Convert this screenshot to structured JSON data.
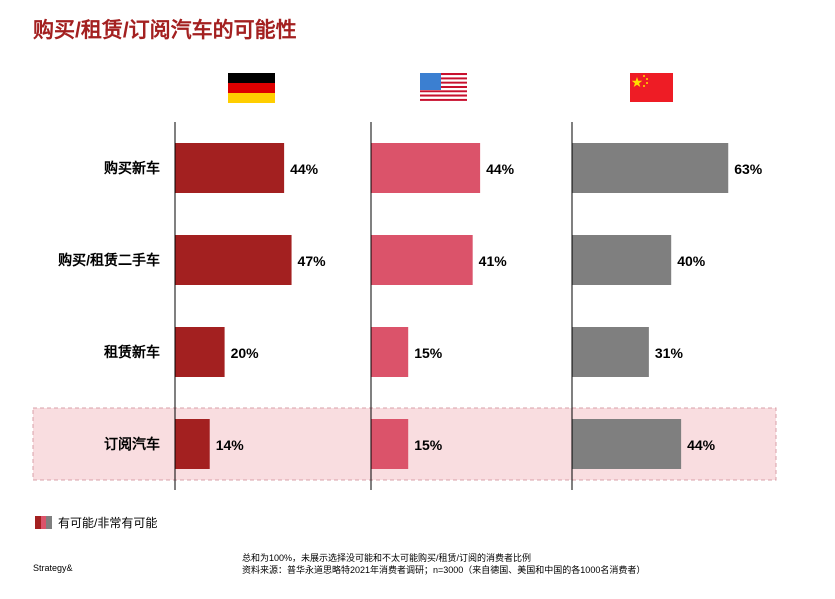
{
  "title": "购买/租赁/订阅汽车的可能性",
  "chart_data": {
    "type": "bar",
    "orientation": "horizontal",
    "title": "购买/租赁/订阅汽车的可能性",
    "categories": [
      "购买新车",
      "购买/租赁二手车",
      "租赁新车",
      "订阅汽车"
    ],
    "series": [
      {
        "name": "Germany",
        "flag": "germany-flag",
        "color": "#a32020",
        "values": [
          44,
          47,
          20,
          14
        ]
      },
      {
        "name": "USA",
        "flag": "usa-flag",
        "color": "#db536a",
        "values": [
          44,
          41,
          15,
          15
        ]
      },
      {
        "name": "China",
        "flag": "china-flag",
        "color": "#7f7f7f",
        "values": [
          63,
          40,
          31,
          44
        ]
      }
    ],
    "value_suffix": "%",
    "highlighted_category": "订阅汽车",
    "highlight_color": "#f9dde0",
    "legend": "有可能/非常有可能"
  },
  "footer": {
    "brand": "Strategy&",
    "note1": "总和为100%，未展示选择没可能和不太可能购买/租赁/订阅的消费者比例",
    "note2": "资料来源：普华永道思略特2021年消费者调研；n=3000（来自德国、美国和中国的各1000名消费者）"
  }
}
